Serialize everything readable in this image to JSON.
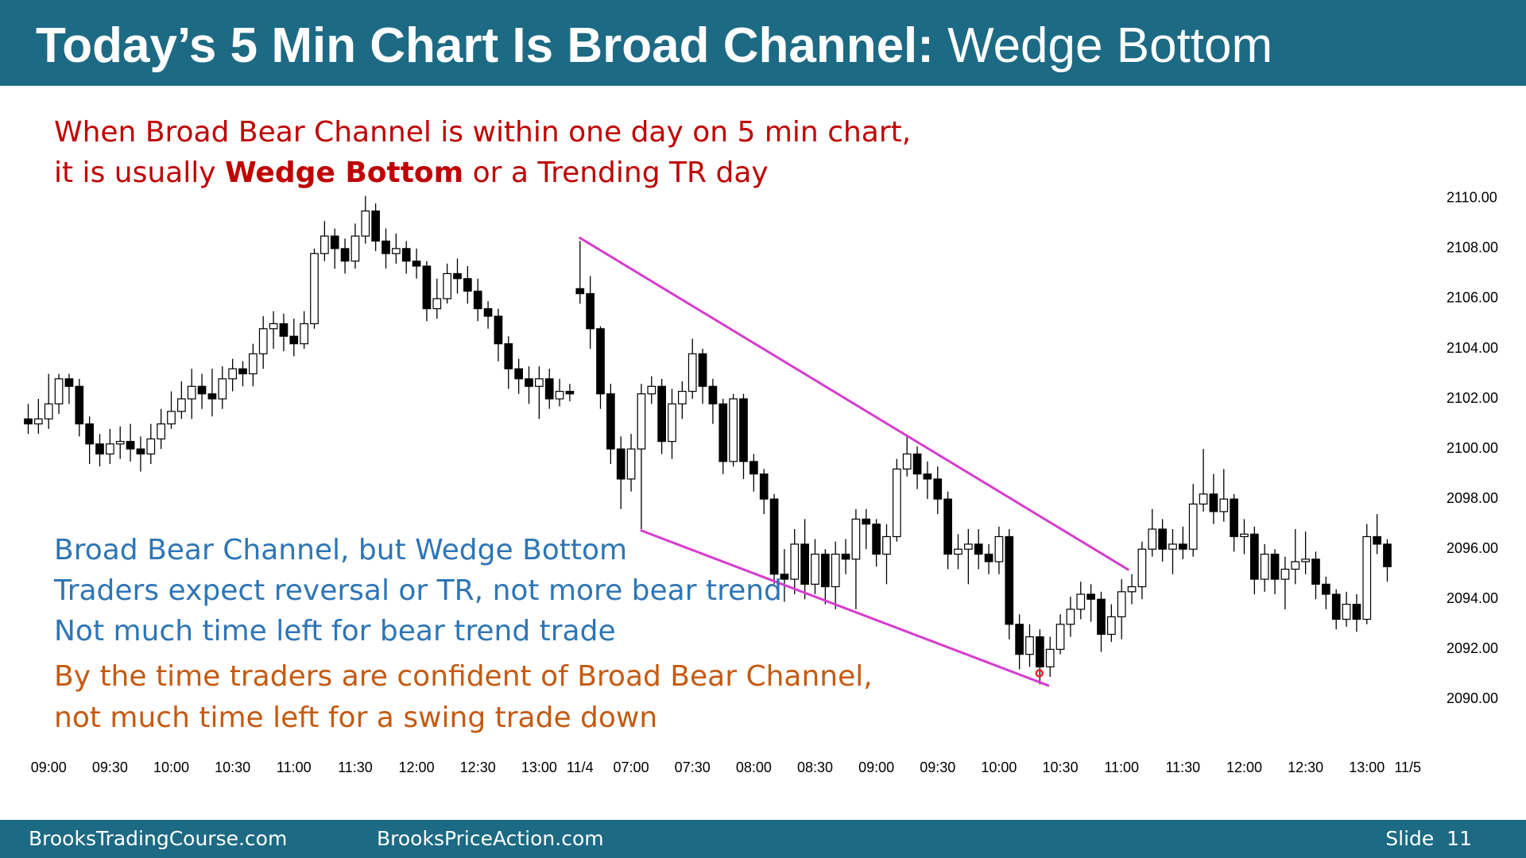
{
  "header": {
    "title_bold": "Today’s 5 Min Chart Is Broad Channel:",
    "title_regular": "Wedge Bottom"
  },
  "notes": {
    "red_line1": "When Broad Bear Channel is within one day on 5 min chart,",
    "red_line2_start": "it is usually",
    "red_line2_bold": "Wedge Bottom",
    "red_line2_end": "or a Trending TR day",
    "blue_lines": [
      "Broad Bear Channel, but Wedge Bottom",
      "Traders expect reversal or TR, not more bear trend",
      "Not much time left for bear trend trade"
    ],
    "orange_lines": [
      "By the time traders are confident of Broad Bear Channel,",
      "not much time left for a swing trade down"
    ]
  },
  "footer": {
    "left": "BrooksTradingCourse.com",
    "middle": "BrooksPriceAction.com",
    "right": "Slide  11"
  },
  "chart_data": {
    "type": "candlestick",
    "up_color": "#ffffff",
    "down_color": "#000000",
    "wedge_color": "#d63ccf",
    "ylim": [
      2088.5,
      2111
    ],
    "yticks": [
      {
        "value": 2090,
        "label": "2090.00"
      },
      {
        "value": 2092,
        "label": "2092.00"
      },
      {
        "value": 2094,
        "label": "2094.00"
      },
      {
        "value": 2096,
        "label": "2096.00"
      },
      {
        "value": 2098,
        "label": "2098.00"
      },
      {
        "value": 2100,
        "label": "2100.00"
      },
      {
        "value": 2102,
        "label": "2102.00"
      },
      {
        "value": 2104,
        "label": "2104.00"
      },
      {
        "value": 2106,
        "label": "2106.00"
      },
      {
        "value": 2108,
        "label": "2108.00"
      },
      {
        "value": 2110,
        "label": "2110.00"
      }
    ],
    "categories": [
      null,
      null,
      "09:00",
      null,
      null,
      null,
      null,
      null,
      "09:30",
      null,
      null,
      null,
      null,
      null,
      "10:00",
      null,
      null,
      null,
      null,
      null,
      "10:30",
      null,
      null,
      null,
      null,
      null,
      "11:00",
      null,
      null,
      null,
      null,
      null,
      "11:30",
      null,
      null,
      null,
      null,
      null,
      "12:00",
      null,
      null,
      null,
      null,
      null,
      "12:30",
      null,
      null,
      null,
      null,
      null,
      "13:00",
      null,
      null,
      null,
      "11/4",
      null,
      null,
      null,
      null,
      "07:00",
      null,
      null,
      null,
      null,
      null,
      "07:30",
      null,
      null,
      null,
      null,
      null,
      "08:00",
      null,
      null,
      null,
      null,
      null,
      "08:30",
      null,
      null,
      null,
      null,
      null,
      "09:00",
      null,
      null,
      null,
      null,
      null,
      "09:30",
      null,
      null,
      null,
      null,
      null,
      "10:00",
      null,
      null,
      null,
      null,
      null,
      "10:30",
      null,
      null,
      null,
      null,
      null,
      "11:00",
      null,
      null,
      null,
      null,
      null,
      "11:30",
      null,
      null,
      null,
      null,
      null,
      "12:00",
      null,
      null,
      null,
      null,
      null,
      "12:30",
      null,
      null,
      null,
      null,
      null,
      "13:00",
      null,
      null,
      null,
      "11/5"
    ],
    "open": [
      2101.2,
      2101.0,
      2101.2,
      2101.8,
      2102.8,
      2102.5,
      2101.0,
      2100.2,
      2099.8,
      2100.2,
      2100.3,
      2100.0,
      2099.8,
      2100.4,
      2101.0,
      2101.5,
      2102.0,
      2102.5,
      2102.2,
      2102.0,
      2102.8,
      2103.2,
      2103.0,
      2103.8,
      2104.8,
      2105.0,
      2104.5,
      2104.2,
      2105.0,
      2107.8,
      2108.5,
      2108.0,
      2107.5,
      2108.5,
      2109.5,
      2108.3,
      2107.8,
      2108.0,
      2107.5,
      2107.3,
      2105.6,
      2106.0,
      2107.0,
      2106.8,
      2106.3,
      2105.6,
      2105.3,
      2104.2,
      2103.2,
      2102.8,
      2102.5,
      2102.8,
      2102.0,
      2102.3,
      2106.4,
      2106.2,
      2104.8,
      2102.2,
      2100.0,
      2098.8,
      2100.0,
      2102.2,
      2102.5,
      2100.3,
      2101.8,
      2102.3,
      2103.8,
      2102.5,
      2101.8,
      2099.5,
      2102.0,
      2099.5,
      2099.0,
      2098.0,
      2095.0,
      2094.8,
      2096.2,
      2094.6,
      2095.8,
      2094.5,
      2095.8,
      2095.6,
      2097.2,
      2097.0,
      2095.8,
      2096.5,
      2099.2,
      2099.8,
      2099.0,
      2098.8,
      2098.0,
      2095.8,
      2096.0,
      2096.2,
      2095.8,
      2095.5,
      2096.5,
      2093.0,
      2091.8,
      2092.5,
      2091.3,
      2092.0,
      2093.0,
      2093.6,
      2094.2,
      2094.0,
      2092.6,
      2093.3,
      2094.3,
      2094.5,
      2096.0,
      2096.8,
      2096.0,
      2096.2,
      2096.0,
      2097.8,
      2098.2,
      2097.5,
      2098.0,
      2096.5,
      2096.6,
      2094.8,
      2095.8,
      2094.8,
      2095.2,
      2095.5,
      2095.6,
      2094.6,
      2094.2,
      2093.2,
      2093.8,
      2093.2,
      2096.5,
      2096.2,
      null,
      null
    ],
    "high": [
      2101.8,
      2102.0,
      2103.0,
      2103.0,
      2103.0,
      2102.8,
      2101.3,
      2100.6,
      2100.8,
      2100.9,
      2101.0,
      2100.5,
      2101.0,
      2101.6,
      2102.3,
      2102.7,
      2103.2,
      2103.0,
      2103.2,
      2103.3,
      2103.6,
      2103.5,
      2104.2,
      2105.3,
      2105.5,
      2105.4,
      2105.2,
      2105.5,
      2108.0,
      2109.1,
      2108.8,
      2108.4,
      2109.0,
      2110.1,
      2109.8,
      2108.8,
      2108.6,
      2108.3,
      2108.0,
      2107.5,
      2106.8,
      2107.4,
      2107.6,
      2107.3,
      2106.8,
      2105.9,
      2105.6,
      2104.5,
      2103.6,
      2103.3,
      2103.3,
      2103.2,
      2102.8,
      2102.6,
      2108.3,
      2106.9,
      2104.9,
      2102.6,
      2100.5,
      2100.6,
      2102.6,
      2102.9,
      2102.8,
      2102.4,
      2102.7,
      2104.4,
      2104.0,
      2102.8,
      2102.0,
      2102.2,
      2102.2,
      2099.8,
      2099.2,
      2098.2,
      2096.0,
      2096.8,
      2097.2,
      2096.4,
      2096.0,
      2096.3,
      2096.4,
      2097.6,
      2097.6,
      2097.2,
      2097.0,
      2099.6,
      2100.5,
      2100.1,
      2099.5,
      2099.3,
      2098.3,
      2096.6,
      2096.8,
      2096.8,
      2096.2,
      2096.9,
      2096.8,
      2093.4,
      2093.0,
      2092.8,
      2092.5,
      2093.4,
      2094.1,
      2094.7,
      2094.6,
      2094.3,
      2093.8,
      2094.8,
      2095.0,
      2096.3,
      2097.6,
      2097.2,
      2096.8,
      2096.9,
      2098.6,
      2100.0,
      2099.0,
      2099.2,
      2098.2,
      2097.2,
      2096.9,
      2096.2,
      2096.0,
      2095.7,
      2096.8,
      2096.7,
      2095.9,
      2094.9,
      2094.4,
      2094.3,
      2094.2,
      2097.0,
      2097.4,
      2096.4,
      null,
      null
    ],
    "low": [
      2100.6,
      2100.6,
      2100.8,
      2101.4,
      2101.8,
      2100.5,
      2099.4,
      2099.3,
      2099.4,
      2099.6,
      2099.5,
      2099.1,
      2099.4,
      2100.0,
      2100.8,
      2101.2,
      2101.2,
      2101.6,
      2101.3,
      2101.6,
      2102.3,
      2102.5,
      2102.5,
      2103.2,
      2104.0,
      2103.9,
      2103.7,
      2104.0,
      2104.8,
      2107.5,
      2107.2,
      2107.0,
      2107.2,
      2108.2,
      2107.9,
      2107.2,
      2107.4,
      2107.0,
      2106.8,
      2105.1,
      2105.2,
      2105.8,
      2106.2,
      2105.8,
      2105.1,
      2104.8,
      2103.5,
      2102.4,
      2102.2,
      2101.8,
      2101.2,
      2101.6,
      2101.7,
      2101.9,
      2105.8,
      2104.0,
      2101.6,
      2099.4,
      2097.6,
      2098.3,
      2096.8,
      2101.8,
      2099.8,
      2099.6,
      2101.2,
      2102.0,
      2101.8,
      2101.0,
      2099.0,
      2099.3,
      2098.8,
      2098.3,
      2097.4,
      2094.6,
      2093.9,
      2094.2,
      2094.0,
      2094.2,
      2093.8,
      2093.6,
      2095.0,
      2093.6,
      2096.0,
      2095.3,
      2094.6,
      2096.3,
      2098.9,
      2098.4,
      2098.0,
      2097.4,
      2095.2,
      2095.2,
      2094.6,
      2095.2,
      2095.0,
      2095.0,
      2092.4,
      2091.2,
      2091.3,
      2090.6,
      2090.9,
      2091.8,
      2092.5,
      2093.2,
      2093.1,
      2091.9,
      2092.3,
      2092.4,
      2093.8,
      2094.0,
      2095.7,
      2095.5,
      2095.0,
      2095.6,
      2095.7,
      2097.5,
      2097.0,
      2097.1,
      2095.9,
      2095.8,
      2094.2,
      2094.3,
      2094.2,
      2093.6,
      2094.6,
      2095.0,
      2094.0,
      2093.6,
      2092.8,
      2092.9,
      2092.7,
      2093.0,
      2095.8,
      2094.7,
      null,
      null
    ],
    "close": [
      2101.0,
      2101.2,
      2101.8,
      2102.8,
      2102.5,
      2101.0,
      2100.2,
      2099.8,
      2100.2,
      2100.3,
      2100.0,
      2099.8,
      2100.4,
      2101.0,
      2101.5,
      2102.0,
      2102.5,
      2102.2,
      2102.0,
      2102.8,
      2103.2,
      2103.0,
      2103.8,
      2104.8,
      2105.0,
      2104.5,
      2104.2,
      2105.0,
      2107.8,
      2108.5,
      2108.0,
      2107.5,
      2108.5,
      2109.5,
      2108.3,
      2107.8,
      2108.0,
      2107.5,
      2107.3,
      2105.6,
      2106.0,
      2107.0,
      2106.8,
      2106.3,
      2105.6,
      2105.3,
      2104.2,
      2103.2,
      2102.8,
      2102.5,
      2102.8,
      2102.0,
      2102.3,
      2102.2,
      2106.2,
      2104.8,
      2102.2,
      2100.0,
      2098.8,
      2100.0,
      2102.2,
      2102.5,
      2100.3,
      2101.8,
      2102.3,
      2103.8,
      2102.5,
      2101.8,
      2099.5,
      2102.0,
      2099.5,
      2099.0,
      2098.0,
      2095.0,
      2094.8,
      2096.2,
      2094.6,
      2095.8,
      2094.5,
      2095.8,
      2095.6,
      2097.2,
      2097.0,
      2095.8,
      2096.5,
      2099.2,
      2099.8,
      2099.0,
      2098.8,
      2098.0,
      2095.8,
      2096.0,
      2096.2,
      2095.8,
      2095.5,
      2096.5,
      2093.0,
      2091.8,
      2092.5,
      2091.3,
      2092.0,
      2093.0,
      2093.6,
      2094.2,
      2094.0,
      2092.6,
      2093.3,
      2094.3,
      2094.5,
      2096.0,
      2096.8,
      2096.0,
      2096.2,
      2096.0,
      2097.8,
      2098.2,
      2097.5,
      2098.0,
      2096.5,
      2096.6,
      2094.8,
      2095.8,
      2094.8,
      2095.2,
      2095.5,
      2095.6,
      2094.6,
      2094.2,
      2093.2,
      2093.8,
      2093.2,
      2096.5,
      2096.2,
      2095.3,
      null,
      null
    ]
  }
}
